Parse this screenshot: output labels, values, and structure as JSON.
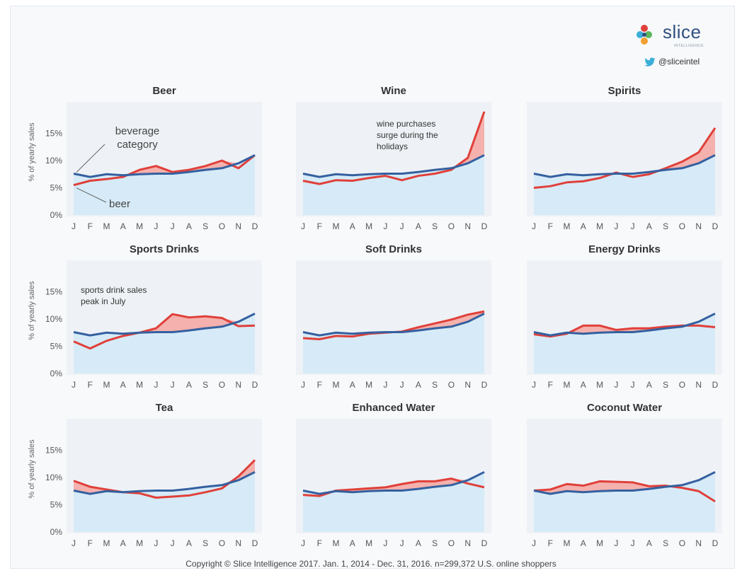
{
  "brand": {
    "name": "slice",
    "sub": "INTELLIGENCE",
    "handle": "@sliceintel",
    "colors": {
      "blue": "#2f4f7f",
      "red": "#e0403a",
      "orange": "#f0a030",
      "teal": "#3aaed8",
      "green": "#5cb85c"
    }
  },
  "footer": "Copyright © Slice Intelligence 2017. Jan. 1, 2014 - Dec. 31, 2016. n=299,372 U.S. online shoppers",
  "chart_data": {
    "type": "line",
    "months": [
      "J",
      "F",
      "M",
      "A",
      "M",
      "J",
      "J",
      "A",
      "S",
      "O",
      "N",
      "D"
    ],
    "ylabel": "% of yearly sales",
    "yticks": [
      "0%",
      "5%",
      "10%",
      "15%"
    ],
    "ylim": [
      0,
      20
    ],
    "colors": {
      "category": "#3560a0",
      "item": "#e0403a",
      "fill_below": "#d6ebf7",
      "fill_gap": "#f4a6a0",
      "panel_bg": "#eef2f6"
    },
    "category_values": [
      7.6,
      7.0,
      7.5,
      7.3,
      7.5,
      7.6,
      7.6,
      7.9,
      8.3,
      8.6,
      9.5,
      11.0
    ],
    "panels": [
      {
        "title": "Beer",
        "values": [
          5.5,
          6.3,
          6.6,
          7.0,
          8.3,
          9.0,
          7.9,
          8.3,
          9.0,
          10.0,
          8.6,
          11.0
        ],
        "annotations": [
          {
            "text": "beverage category"
          },
          {
            "text": "beer"
          }
        ]
      },
      {
        "title": "Wine",
        "values": [
          6.3,
          5.7,
          6.4,
          6.3,
          6.8,
          7.2,
          6.4,
          7.2,
          7.6,
          8.3,
          10.5,
          19.0
        ],
        "annotations": [
          {
            "text": "wine purchases surge during the holidays"
          }
        ]
      },
      {
        "title": "Spirits",
        "values": [
          5.0,
          5.3,
          6.0,
          6.2,
          6.8,
          7.8,
          7.0,
          7.5,
          8.6,
          9.8,
          11.5,
          16.0
        ],
        "annotations": []
      },
      {
        "title": "Sports Drinks",
        "values": [
          5.9,
          4.6,
          6.0,
          6.9,
          7.5,
          8.3,
          10.9,
          10.3,
          10.5,
          10.2,
          8.7,
          8.8
        ],
        "annotations": [
          {
            "text": "sports drink sales peak in July"
          }
        ]
      },
      {
        "title": "Soft Drinks",
        "values": [
          6.5,
          6.3,
          6.9,
          6.8,
          7.3,
          7.5,
          7.7,
          8.5,
          9.2,
          9.9,
          10.8,
          11.4
        ],
        "annotations": []
      },
      {
        "title": "Energy Drinks",
        "values": [
          7.2,
          6.8,
          7.3,
          8.8,
          8.8,
          8.0,
          8.3,
          8.3,
          8.6,
          8.8,
          8.8,
          8.5
        ],
        "annotations": []
      },
      {
        "title": "Tea",
        "values": [
          9.4,
          8.3,
          7.8,
          7.3,
          7.1,
          6.3,
          6.5,
          6.7,
          7.3,
          8.0,
          10.2,
          13.2
        ],
        "annotations": []
      },
      {
        "title": "Enhanced Water",
        "values": [
          6.8,
          6.6,
          7.6,
          7.8,
          8.0,
          8.2,
          8.8,
          9.3,
          9.3,
          9.8,
          8.9,
          8.2
        ],
        "annotations": []
      },
      {
        "title": "Coconut Water",
        "values": [
          7.6,
          7.8,
          8.8,
          8.5,
          9.3,
          9.2,
          9.1,
          8.4,
          8.5,
          8.1,
          7.5,
          5.6
        ],
        "annotations": []
      }
    ]
  }
}
